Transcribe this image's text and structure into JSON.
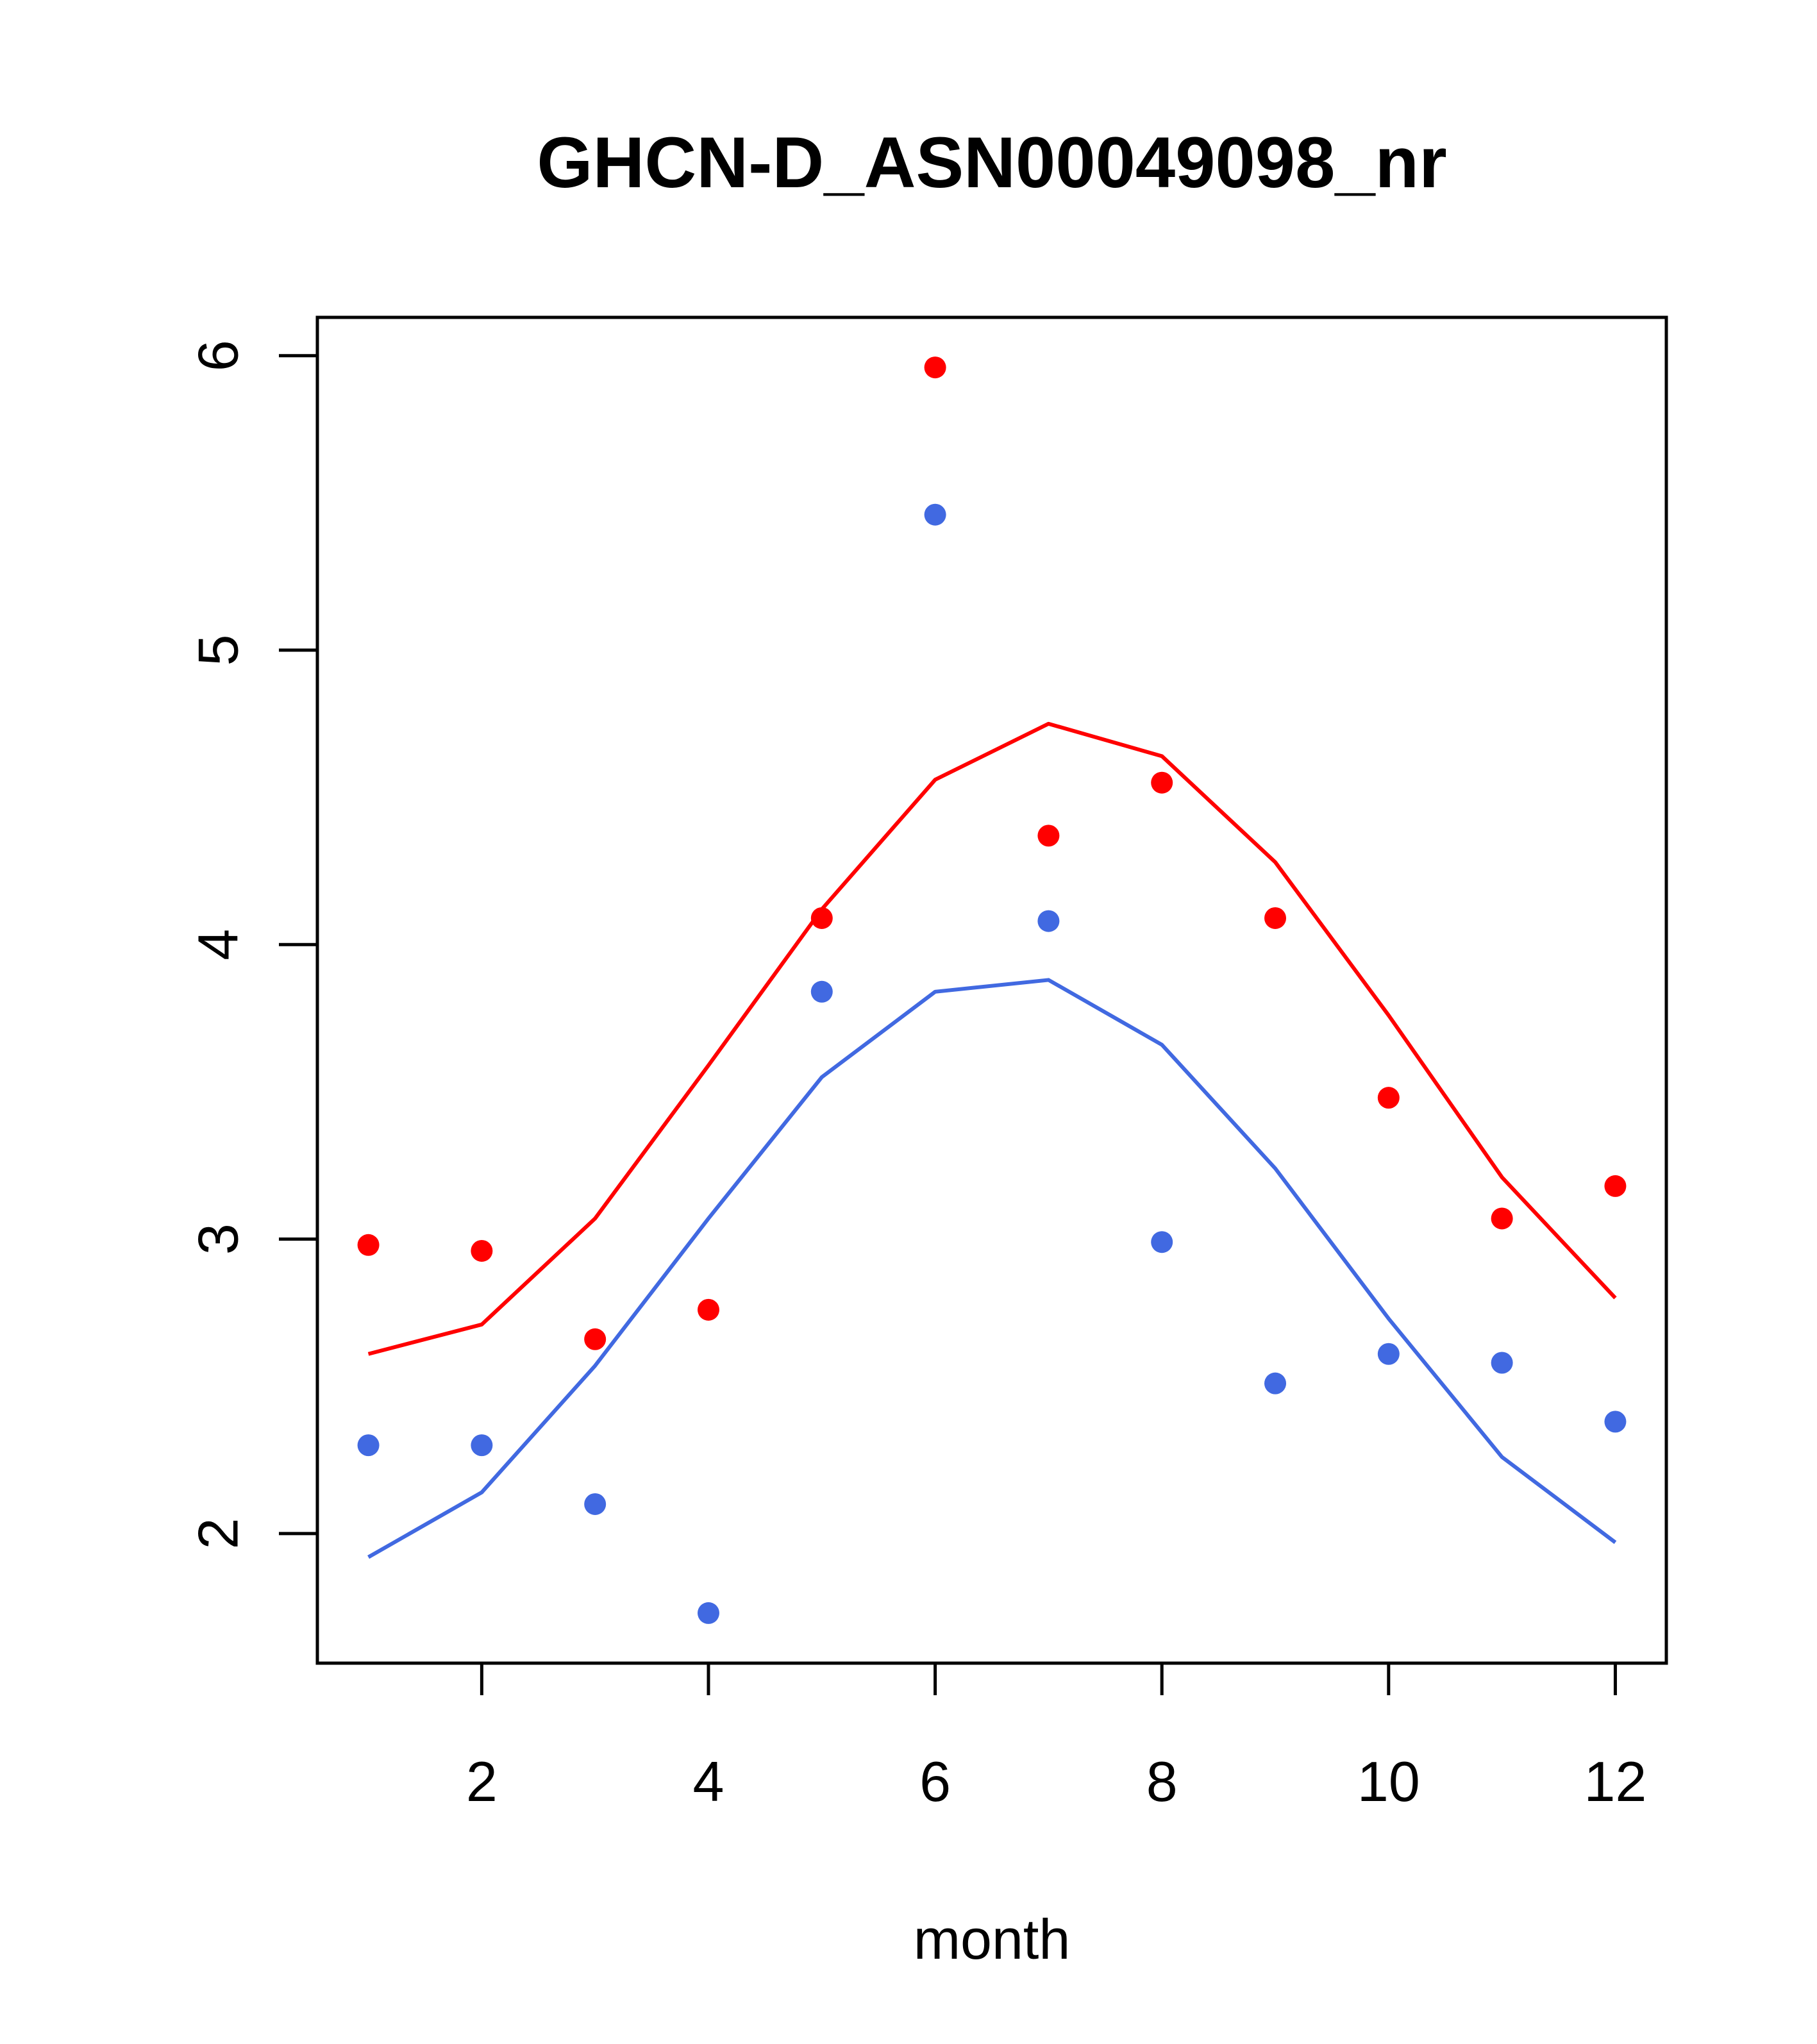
{
  "chart_data": {
    "type": "scatter",
    "title": "GHCN-D_ASN00049098_nr",
    "xlabel": "month",
    "ylabel": "",
    "xlim": [
      0.55,
      12.45
    ],
    "ylim": [
      1.56,
      6.13
    ],
    "x_ticks": [
      2,
      4,
      6,
      8,
      10,
      12
    ],
    "y_ticks": [
      2,
      3,
      4,
      5,
      6
    ],
    "grid": false,
    "x": [
      1,
      2,
      3,
      4,
      5,
      6,
      7,
      8,
      9,
      10,
      11,
      12
    ],
    "series": [
      {
        "color": "#ff0000",
        "points": [
          2.98,
          2.96,
          2.66,
          2.76,
          4.09,
          5.96,
          4.37,
          4.55,
          4.09,
          3.48,
          3.07,
          3.18
        ],
        "line": [
          2.61,
          2.71,
          3.07,
          3.59,
          4.12,
          4.56,
          4.75,
          4.64,
          4.28,
          3.76,
          3.21,
          2.8
        ]
      },
      {
        "color": "#4169e1",
        "points": [
          2.3,
          2.3,
          2.1,
          1.73,
          3.84,
          5.46,
          4.08,
          2.99,
          2.51,
          2.61,
          2.58,
          2.38
        ],
        "line": [
          1.92,
          2.14,
          2.57,
          3.07,
          3.55,
          3.84,
          3.88,
          3.66,
          3.24,
          2.73,
          2.26,
          1.97
        ]
      }
    ]
  }
}
